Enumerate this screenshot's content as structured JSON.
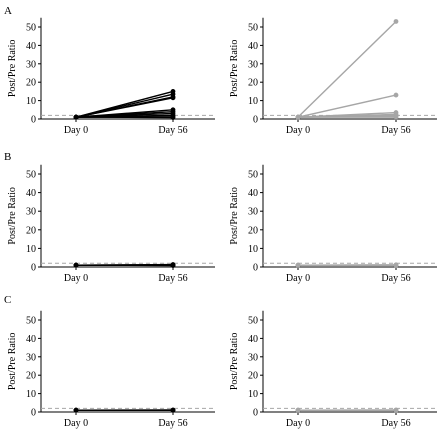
{
  "panel_labels": [
    "A",
    "B",
    "C"
  ],
  "chart_data": [
    {
      "type": "line",
      "panel": "A",
      "position": "left",
      "ylabel": "Post/Pre Ratio",
      "categories": [
        "Day 0",
        "Day 56"
      ],
      "ylim": [
        0,
        55
      ],
      "yticks": [
        0,
        10,
        20,
        30,
        40,
        50
      ],
      "reference_line": 2,
      "color": "#000000",
      "series": [
        {
          "values": [
            1,
            15
          ]
        },
        {
          "values": [
            1,
            13.5
          ]
        },
        {
          "values": [
            1,
            12
          ]
        },
        {
          "values": [
            1,
            11.5
          ]
        },
        {
          "values": [
            1,
            5
          ]
        },
        {
          "values": [
            1,
            4
          ]
        },
        {
          "values": [
            1,
            3
          ]
        },
        {
          "values": [
            1,
            2
          ]
        },
        {
          "values": [
            1,
            1.2
          ]
        },
        {
          "values": [
            1,
            0.8
          ]
        }
      ]
    },
    {
      "type": "line",
      "panel": "A",
      "position": "right",
      "ylabel": "Post/Pre Ratio",
      "categories": [
        "Day 0",
        "Day 56"
      ],
      "ylim": [
        0,
        55
      ],
      "yticks": [
        0,
        10,
        20,
        30,
        40,
        50
      ],
      "reference_line": 2,
      "color": "#a6a6a6",
      "series": [
        {
          "values": [
            1,
            53
          ]
        },
        {
          "values": [
            1,
            13
          ]
        },
        {
          "values": [
            1,
            3.5
          ]
        },
        {
          "values": [
            1,
            2.5
          ]
        },
        {
          "values": [
            1,
            2
          ]
        },
        {
          "values": [
            1,
            1.5
          ]
        },
        {
          "values": [
            1,
            1
          ]
        }
      ]
    },
    {
      "type": "line",
      "panel": "B",
      "position": "left",
      "ylabel": "Post/Pre Ratio",
      "categories": [
        "Day 0",
        "Day 56"
      ],
      "ylim": [
        0,
        55
      ],
      "yticks": [
        0,
        10,
        20,
        30,
        40,
        50
      ],
      "reference_line": 2,
      "color": "#000000",
      "series": [
        {
          "values": [
            1,
            1.3
          ]
        },
        {
          "values": [
            1,
            1.1
          ]
        },
        {
          "values": [
            1,
            1
          ]
        },
        {
          "values": [
            1,
            0.9
          ]
        },
        {
          "values": [
            1,
            0.8
          ]
        }
      ]
    },
    {
      "type": "line",
      "panel": "B",
      "position": "right",
      "ylabel": "Post/Pre Ratio",
      "categories": [
        "Day 0",
        "Day 56"
      ],
      "ylim": [
        0,
        55
      ],
      "yticks": [
        0,
        10,
        20,
        30,
        40,
        50
      ],
      "reference_line": 2,
      "color": "#a6a6a6",
      "series": [
        {
          "values": [
            1,
            1.2
          ]
        },
        {
          "values": [
            1,
            1
          ]
        },
        {
          "values": [
            1,
            0.9
          ]
        }
      ]
    },
    {
      "type": "line",
      "panel": "C",
      "position": "left",
      "ylabel": "Post/Pre Ratio",
      "categories": [
        "Day 0",
        "Day 56"
      ],
      "ylim": [
        0,
        55
      ],
      "yticks": [
        0,
        10,
        20,
        30,
        40,
        50
      ],
      "reference_line": 2,
      "color": "#000000",
      "series": [
        {
          "values": [
            1,
            1.1
          ]
        },
        {
          "values": [
            1,
            1
          ]
        },
        {
          "values": [
            1,
            0.9
          ]
        }
      ]
    },
    {
      "type": "line",
      "panel": "C",
      "position": "right",
      "ylabel": "Post/Pre Ratio",
      "categories": [
        "Day 0",
        "Day 56"
      ],
      "ylim": [
        0,
        55
      ],
      "yticks": [
        0,
        10,
        20,
        30,
        40,
        50
      ],
      "reference_line": 2,
      "color": "#a6a6a6",
      "series": [
        {
          "values": [
            1,
            1.1
          ]
        },
        {
          "values": [
            1,
            1
          ]
        },
        {
          "values": [
            1,
            0.9
          ]
        }
      ]
    }
  ]
}
